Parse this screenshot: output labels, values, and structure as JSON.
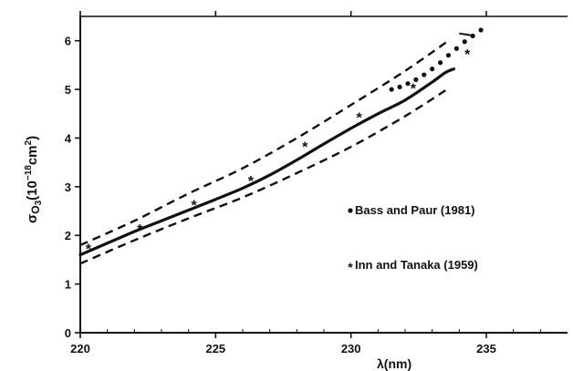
{
  "chart_data": {
    "type": "line",
    "xlabel": "λ(nm)",
    "ylabel_base": "σ",
    "ylabel_sub": "O",
    "ylabel_subsub": "3",
    "ylabel_units_pre": "(10",
    "ylabel_exp": "−18",
    "ylabel_units_mid": "cm",
    "ylabel_units_exp": "2",
    "ylabel_units_post": ")",
    "xlim": [
      220,
      238
    ],
    "ylim": [
      0,
      6.5
    ],
    "x_ticks": [
      220,
      225,
      230,
      235
    ],
    "x_tick_labels": [
      "220",
      "225",
      "230",
      "235"
    ],
    "x_minor_ticks": [
      220,
      221,
      222,
      223,
      224,
      225,
      226,
      227,
      228,
      229,
      230,
      231,
      232,
      233,
      234,
      235,
      236,
      237
    ],
    "top_ticks": [
      220,
      225,
      230,
      235
    ],
    "y_ticks": [
      0,
      1,
      2,
      3,
      4,
      5,
      6
    ],
    "y_tick_labels": [
      "0",
      "1",
      "2",
      "3",
      "4",
      "5",
      "6"
    ],
    "series": [
      {
        "style": "solid",
        "x": [
          220,
          221,
          222,
          223,
          224,
          225,
          226,
          227,
          228,
          229,
          230,
          231,
          232,
          233,
          233.5,
          233.8
        ],
        "y": [
          1.6,
          1.84,
          2.08,
          2.3,
          2.52,
          2.74,
          2.97,
          3.24,
          3.55,
          3.88,
          4.2,
          4.5,
          4.78,
          5.15,
          5.35,
          5.42
        ]
      },
      {
        "style": "dashed",
        "x": [
          220,
          222,
          224,
          226,
          228,
          230,
          232,
          233.6
        ],
        "y": [
          1.8,
          2.3,
          2.86,
          3.38,
          4.0,
          4.68,
          5.38,
          6.0
        ]
      },
      {
        "style": "dashed",
        "x": [
          220,
          222,
          224,
          226,
          228,
          230,
          232,
          233.6
        ],
        "y": [
          1.42,
          1.9,
          2.35,
          2.78,
          3.28,
          3.82,
          4.45,
          5.02
        ]
      },
      {
        "name": "Bass and Paur (1981)",
        "style": "dots",
        "x": [
          231.5,
          231.8,
          232.1,
          232.4,
          232.7,
          233.0,
          233.3,
          233.6,
          233.9,
          234.2,
          234.5,
          234.8
        ],
        "y": [
          5.0,
          5.05,
          5.12,
          5.2,
          5.3,
          5.42,
          5.55,
          5.7,
          5.84,
          5.98,
          6.1,
          6.22
        ]
      },
      {
        "name": "Inn and Tanaka (1959)",
        "style": "star",
        "x": [
          220.3,
          222.2,
          224.2,
          226.3,
          228.3,
          230.3,
          232.3,
          234.3
        ],
        "y": [
          1.75,
          2.15,
          2.65,
          3.15,
          3.85,
          4.45,
          5.05,
          5.75
        ]
      }
    ],
    "upper_dash_tail": {
      "x": [
        234.0,
        234.5
      ],
      "y": [
        6.15,
        6.05
      ]
    },
    "legend": [
      {
        "marker": "•",
        "label": "Bass and Paur (1981)"
      },
      {
        "marker": "*",
        "label": "Inn and Tanaka (1959)"
      }
    ],
    "legend_position": "right-center"
  }
}
